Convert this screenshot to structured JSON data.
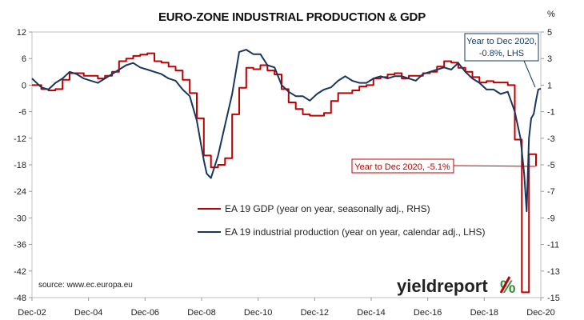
{
  "chart_data": {
    "type": "line",
    "title": "EURO-ZONE INDUSTRIAL PRODUCTION & GDP",
    "right_axis_unit": "%",
    "x_ticks": [
      "Dec-02",
      "Dec-04",
      "Dec-06",
      "Dec-08",
      "Dec-10",
      "Dec-12",
      "Dec-14",
      "Dec-16",
      "Dec-18",
      "Dec-20"
    ],
    "left_axis": {
      "min": -48,
      "max": 12,
      "ticks": [
        "12",
        "6",
        "0",
        "-6",
        "-12",
        "-18",
        "-24",
        "-30",
        "-36",
        "-42",
        "-48"
      ]
    },
    "right_axis": {
      "min": -15,
      "max": 5,
      "ticks": [
        "5",
        "3",
        "1",
        "-1",
        "-3",
        "-5",
        "-7",
        "-9",
        "-11",
        "-13",
        "-15"
      ]
    },
    "grid": false,
    "legend": [
      {
        "label": "EA 19 GDP (year on year, seasonally adj., RHS)",
        "color": "#c00000"
      },
      {
        "label": "EA 19 industrial production (year on year, calendar adj., LHS)",
        "color": "#17375e"
      }
    ],
    "series": [
      {
        "name": "EA 19 GDP (year on year, seasonally adj., RHS)",
        "axis": "right",
        "color": "#c00000",
        "x": [
          2002.92,
          2003.25,
          2003.5,
          2003.75,
          2004.0,
          2004.25,
          2004.5,
          2004.75,
          2005.0,
          2005.25,
          2005.5,
          2005.75,
          2006.0,
          2006.25,
          2006.5,
          2006.75,
          2007.0,
          2007.25,
          2007.5,
          2007.75,
          2008.0,
          2008.25,
          2008.5,
          2008.75,
          2009.0,
          2009.25,
          2009.5,
          2009.75,
          2010.0,
          2010.25,
          2010.5,
          2010.75,
          2011.0,
          2011.25,
          2011.5,
          2011.75,
          2012.0,
          2012.25,
          2012.5,
          2012.75,
          2013.0,
          2013.25,
          2013.5,
          2013.75,
          2014.0,
          2014.25,
          2014.5,
          2014.75,
          2015.0,
          2015.25,
          2015.5,
          2015.75,
          2016.0,
          2016.25,
          2016.5,
          2016.75,
          2017.0,
          2017.25,
          2017.5,
          2017.75,
          2018.0,
          2018.25,
          2018.5,
          2018.75,
          2019.0,
          2019.25,
          2019.5,
          2019.75,
          2020.0,
          2020.25,
          2020.5,
          2020.75
        ],
        "values": [
          1.0,
          0.7,
          0.6,
          0.7,
          1.4,
          1.9,
          1.9,
          1.7,
          1.7,
          1.5,
          1.7,
          2.0,
          2.8,
          3.0,
          3.2,
          3.3,
          3.4,
          2.8,
          2.7,
          2.4,
          2.1,
          1.4,
          0.4,
          -1.5,
          -4.3,
          -5.2,
          -5.0,
          -4.5,
          -1.2,
          0.8,
          2.3,
          2.2,
          2.5,
          2.1,
          1.8,
          0.7,
          -0.3,
          -0.8,
          -1.2,
          -1.3,
          -1.3,
          -1.1,
          -0.2,
          0.4,
          0.4,
          0.6,
          0.9,
          1.0,
          1.5,
          1.6,
          1.8,
          1.9,
          1.5,
          1.7,
          1.7,
          1.9,
          2.0,
          2.4,
          2.8,
          2.7,
          2.3,
          2.0,
          1.6,
          1.2,
          1.3,
          1.2,
          1.2,
          1.0,
          -3.1,
          -14.6,
          -4.2,
          -5.1
        ],
        "final_label": "Year to Dec 2020, -5.1%"
      },
      {
        "name": "EA 19 industrial production (year on year, calendar adj., LHS)",
        "axis": "left",
        "color": "#17375e",
        "x": [
          2002.92,
          2003.25,
          2003.5,
          2003.75,
          2004.0,
          2004.25,
          2004.5,
          2004.75,
          2005.0,
          2005.25,
          2005.5,
          2005.75,
          2006.0,
          2006.25,
          2006.5,
          2006.75,
          2007.0,
          2007.25,
          2007.5,
          2007.75,
          2008.0,
          2008.25,
          2008.5,
          2008.75,
          2009.0,
          2009.1,
          2009.25,
          2009.5,
          2009.75,
          2010.0,
          2010.25,
          2010.5,
          2010.75,
          2011.0,
          2011.25,
          2011.5,
          2011.75,
          2012.0,
          2012.25,
          2012.5,
          2012.75,
          2013.0,
          2013.25,
          2013.5,
          2013.75,
          2014.0,
          2014.25,
          2014.5,
          2014.75,
          2015.0,
          2015.25,
          2015.5,
          2015.75,
          2016.0,
          2016.25,
          2016.5,
          2016.75,
          2017.0,
          2017.25,
          2017.5,
          2017.75,
          2018.0,
          2018.25,
          2018.5,
          2018.75,
          2019.0,
          2019.25,
          2019.5,
          2019.75,
          2020.0,
          2020.2,
          2020.33,
          2020.42,
          2020.5,
          2020.58,
          2020.67,
          2020.75,
          2020.83,
          2020.92
        ],
        "values": [
          1.5,
          -0.5,
          -1.0,
          0.5,
          1.5,
          3.0,
          2.5,
          1.5,
          1.0,
          0.5,
          1.5,
          2.5,
          3.5,
          4.5,
          5.0,
          4.0,
          3.5,
          3.0,
          2.5,
          1.5,
          1.0,
          -1.0,
          -2.5,
          -8.0,
          -17.0,
          -20.0,
          -21.0,
          -16.0,
          -9.0,
          -2.0,
          7.5,
          8.0,
          7.0,
          7.0,
          4.5,
          4.0,
          0.0,
          -1.5,
          -2.5,
          -2.5,
          -3.5,
          -2.0,
          -1.0,
          -0.5,
          1.0,
          2.0,
          1.0,
          0.5,
          0.5,
          1.5,
          2.0,
          1.5,
          2.0,
          2.0,
          1.5,
          1.0,
          2.5,
          3.0,
          3.5,
          4.0,
          3.5,
          5.0,
          3.0,
          1.5,
          0.5,
          -1.0,
          -1.0,
          -2.0,
          -1.5,
          -6.0,
          -12.0,
          -20.0,
          -28.5,
          -12.0,
          -7.5,
          -6.5,
          -3.5,
          -1.0,
          -0.8
        ],
        "final_label": "Year to Dec 2020,\n-0.8%, LHS"
      }
    ]
  },
  "labels": {
    "source": "source: www.ec.europa.eu",
    "brand_text": "yieldreport",
    "brand_symbol": "%",
    "annot_gdp": "Year to Dec 2020, -5.1%",
    "annot_ip_line1": "Year to Dec 2020,",
    "annot_ip_line2": "-0.8%, LHS"
  }
}
